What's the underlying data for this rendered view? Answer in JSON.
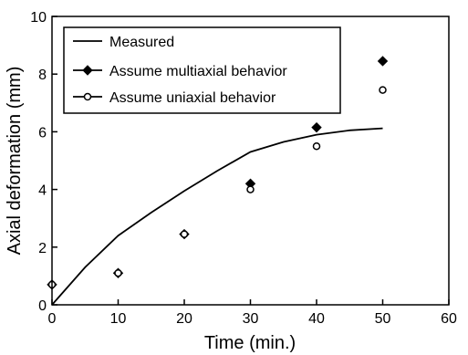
{
  "chart_data": {
    "type": "line",
    "title": "",
    "xlabel": "Time (min.)",
    "ylabel": "Axial deformation (mm)",
    "xlim": [
      0,
      60
    ],
    "ylim": [
      0,
      10
    ],
    "xticks": [
      0,
      10,
      20,
      30,
      40,
      50,
      60
    ],
    "yticks": [
      0,
      2,
      4,
      6,
      8,
      10
    ],
    "grid": false,
    "legend_position": "top-left",
    "series": [
      {
        "name": "Measured",
        "style": "line",
        "color": "#000000",
        "x": [
          0,
          5,
          10,
          15,
          20,
          25,
          30,
          35,
          40,
          45,
          50
        ],
        "y": [
          0,
          1.3,
          2.4,
          3.2,
          3.95,
          4.65,
          5.3,
          5.65,
          5.9,
          6.05,
          6.12
        ]
      },
      {
        "name": "Assume multiaxial behavior",
        "style": "marker",
        "marker": "filled-diamond",
        "color": "#000000",
        "x": [
          0,
          10,
          20,
          30,
          40,
          50
        ],
        "y": [
          0.7,
          1.1,
          2.45,
          4.2,
          6.15,
          8.45
        ]
      },
      {
        "name": "Assume uniaxial behavior",
        "style": "marker",
        "marker": "open-circle",
        "color": "#000000",
        "x": [
          0,
          10,
          20,
          30,
          40,
          50
        ],
        "y": [
          0.7,
          1.1,
          2.45,
          4.0,
          5.5,
          7.45
        ]
      }
    ]
  }
}
